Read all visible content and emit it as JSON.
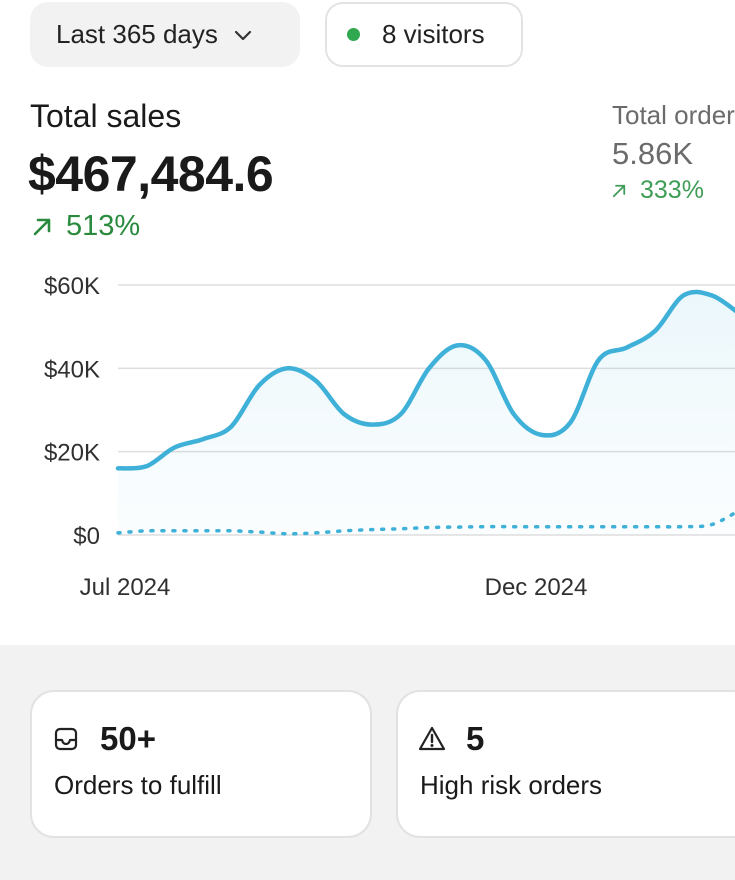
{
  "filters": {
    "date_range": {
      "label": "Last 365 days",
      "icon": "chevron-down-icon"
    },
    "visitors": {
      "label": "8 visitors",
      "status_color": "#2fa84f"
    }
  },
  "total_sales": {
    "title": "Total sales",
    "value": "$467,484.6",
    "change": "513%",
    "change_color": "#2a8a3e",
    "change_icon": "arrow-up-right-icon"
  },
  "total_orders": {
    "title": "Total orders",
    "value": "5.86K",
    "change": "333%",
    "change_icon": "arrow-up-right-icon"
  },
  "chart_data": {
    "type": "line",
    "y_ticks": [
      "$60K",
      "$40K",
      "$20K",
      "$0"
    ],
    "x_ticks": [
      "Jul 2024",
      "Dec 2024"
    ],
    "ylim": [
      0,
      60000
    ],
    "grid": true,
    "series": [
      {
        "style": "solid",
        "color": "#3fb1d9",
        "values": [
          16000,
          16500,
          21000,
          23000,
          26000,
          36000,
          40000,
          37000,
          29000,
          26500,
          29000,
          40000,
          45500,
          42000,
          29000,
          24000,
          27000,
          42000,
          45000,
          49000,
          57500,
          57500,
          53000
        ]
      },
      {
        "style": "dotted",
        "color": "#3fb1d9",
        "values": [
          500,
          1000,
          1000,
          1000,
          1000,
          700,
          300,
          500,
          1000,
          1300,
          1500,
          1800,
          1900,
          2000,
          2000,
          2000,
          2000,
          2000,
          2000,
          2000,
          2000,
          2500,
          6000
        ]
      }
    ]
  },
  "summary_cards": [
    {
      "count": "50+",
      "label": "Orders to fulfill",
      "icon": "inbox-icon"
    },
    {
      "count": "5",
      "label": "High risk orders",
      "icon": "warning-icon"
    }
  ]
}
